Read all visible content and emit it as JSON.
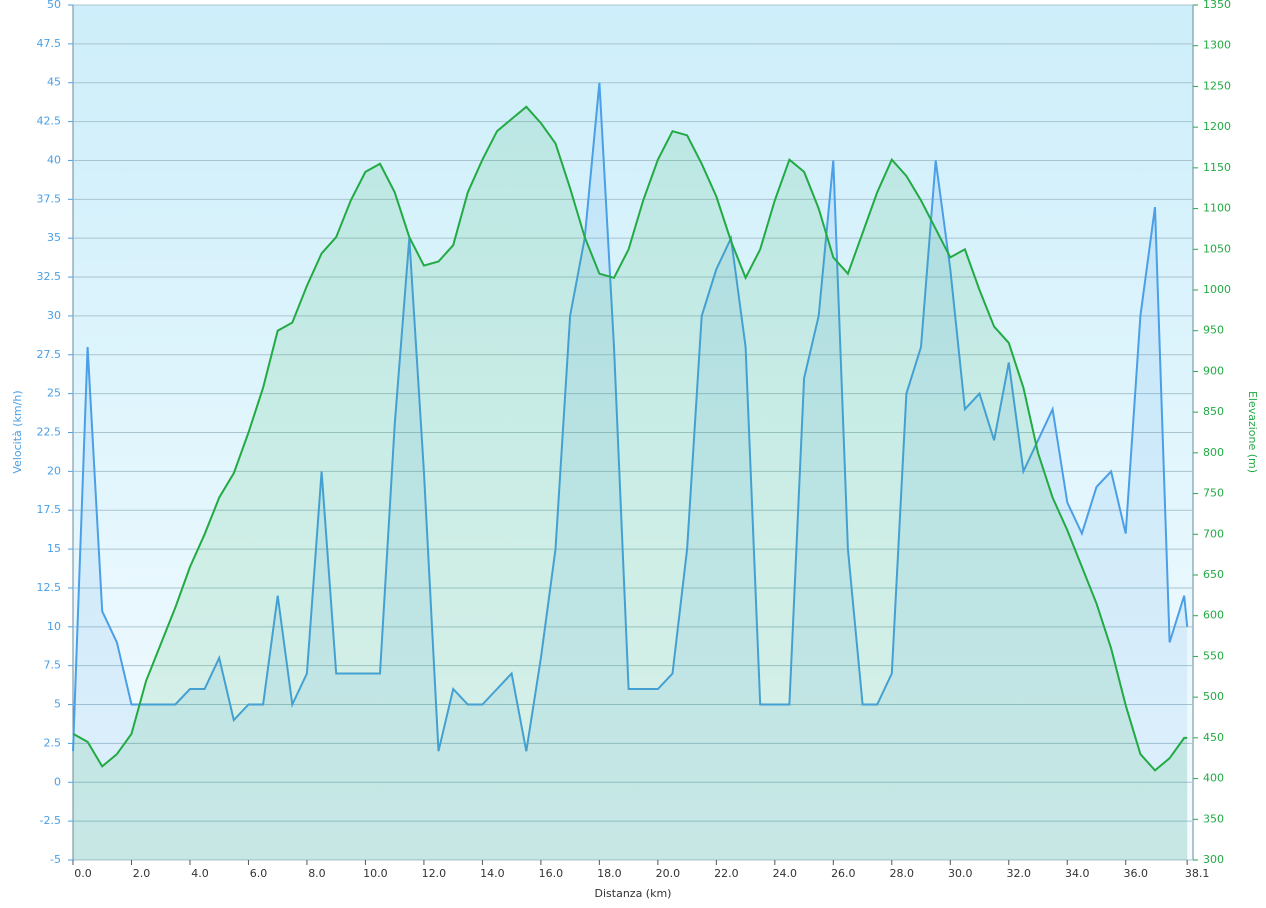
{
  "chart_data": {
    "type": "line",
    "xlabel": "Distanza  (km)",
    "ylabel": "Velocità (km/h)",
    "y2label": "Elevazione (m)",
    "x": [
      0,
      0.5,
      1,
      1.5,
      2,
      2.5,
      3,
      3.5,
      4,
      4.5,
      5,
      5.5,
      6,
      6.5,
      7,
      7.5,
      8,
      8.5,
      9,
      9.5,
      10,
      10.5,
      11,
      11.5,
      12,
      12.5,
      13,
      13.5,
      14,
      14.5,
      15,
      15.5,
      16,
      16.5,
      17,
      17.5,
      18,
      18.5,
      19,
      19.5,
      20,
      20.5,
      21,
      21.5,
      22,
      22.5,
      23,
      23.5,
      24,
      24.5,
      25,
      25.5,
      26,
      26.5,
      27,
      27.5,
      28,
      28.5,
      29,
      29.5,
      30,
      30.5,
      31,
      31.5,
      32,
      32.5,
      33,
      33.5,
      34,
      34.5,
      35,
      35.5,
      36,
      36.5,
      37,
      37.5,
      38,
      38.1
    ],
    "series": [
      {
        "name": "Velocità",
        "color": "#4a9fe6",
        "axis": "y",
        "values": [
          2,
          28,
          11,
          9,
          5,
          5,
          5,
          5,
          6,
          6,
          8,
          4,
          5,
          5,
          12,
          5,
          7,
          20,
          7,
          7,
          7,
          7,
          23,
          35,
          20,
          2,
          6,
          5,
          5,
          6,
          7,
          2,
          8,
          15,
          30,
          35,
          45,
          28,
          6,
          6,
          6,
          7,
          15,
          30,
          33,
          35,
          28,
          5,
          5,
          5,
          26,
          30,
          40,
          15,
          5,
          5,
          7,
          25,
          28,
          40,
          33,
          24,
          25,
          22,
          27,
          20,
          22,
          24,
          18,
          16,
          19,
          20,
          16,
          30,
          37,
          9,
          12,
          10
        ]
      },
      {
        "name": "Elevazione",
        "color": "#22aa44",
        "axis": "y2",
        "values": [
          455,
          445,
          415,
          430,
          455,
          520,
          565,
          610,
          660,
          700,
          745,
          775,
          825,
          880,
          950,
          960,
          1005,
          1045,
          1065,
          1110,
          1145,
          1155,
          1120,
          1065,
          1030,
          1035,
          1055,
          1120,
          1160,
          1195,
          1210,
          1225,
          1205,
          1180,
          1125,
          1065,
          1020,
          1015,
          1050,
          1110,
          1160,
          1195,
          1190,
          1155,
          1115,
          1060,
          1015,
          1050,
          1110,
          1160,
          1145,
          1100,
          1040,
          1020,
          1070,
          1120,
          1160,
          1140,
          1110,
          1075,
          1040,
          1050,
          1000,
          955,
          935,
          880,
          800,
          745,
          705,
          660,
          615,
          560,
          490,
          430,
          410,
          425,
          450,
          450
        ]
      }
    ],
    "xlim": [
      0,
      38.3
    ],
    "xticks": [
      {
        "value": 0,
        "label": "0.0"
      },
      {
        "value": 2,
        "label": "2.0"
      },
      {
        "value": 4,
        "label": "4.0"
      },
      {
        "value": 6,
        "label": "6.0"
      },
      {
        "value": 8,
        "label": "8.0"
      },
      {
        "value": 10,
        "label": "10.0"
      },
      {
        "value": 12,
        "label": "12.0"
      },
      {
        "value": 14,
        "label": "14.0"
      },
      {
        "value": 16,
        "label": "16.0"
      },
      {
        "value": 18,
        "label": "18.0"
      },
      {
        "value": 20,
        "label": "20.0"
      },
      {
        "value": 22,
        "label": "22.0"
      },
      {
        "value": 24,
        "label": "24.0"
      },
      {
        "value": 26,
        "label": "26.0"
      },
      {
        "value": 28,
        "label": "28.0"
      },
      {
        "value": 30,
        "label": "30.0"
      },
      {
        "value": 32,
        "label": "32.0"
      },
      {
        "value": 34,
        "label": "34.0"
      },
      {
        "value": 36,
        "label": "36.0"
      },
      {
        "value": 38.1,
        "label": "38.1"
      }
    ],
    "ylim": [
      -5,
      50
    ],
    "yticks": [
      -5,
      -2.5,
      0,
      2.5,
      5,
      7.5,
      10,
      12.5,
      15,
      17.5,
      20,
      22.5,
      25,
      27.5,
      30,
      32.5,
      35,
      37.5,
      40,
      42.5,
      45,
      47.5,
      50
    ],
    "y2lim": [
      300,
      1350
    ],
    "y2ticks": [
      300,
      350,
      400,
      450,
      500,
      550,
      600,
      650,
      700,
      750,
      800,
      850,
      900,
      950,
      1000,
      1050,
      1100,
      1150,
      1200,
      1250,
      1300,
      1350
    ],
    "grid": true
  }
}
